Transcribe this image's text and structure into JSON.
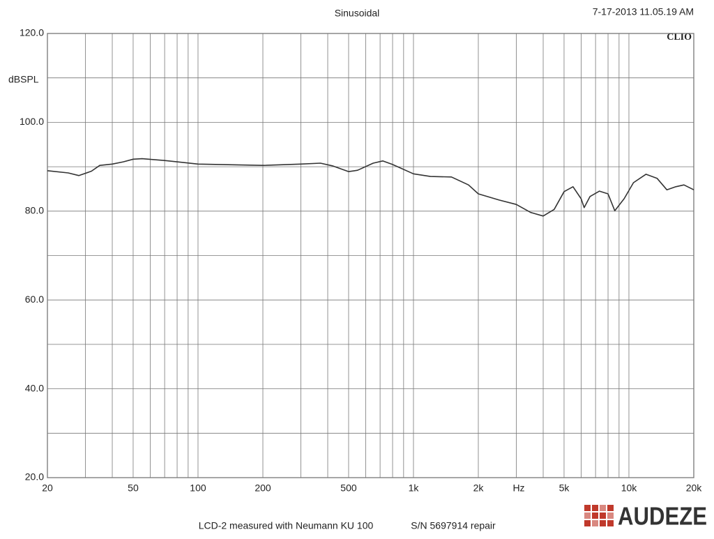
{
  "chart_data": {
    "type": "line",
    "title": "Sinusoidal",
    "timestamp": "7-17-2013 11.05.19 AM",
    "brand": "CLIO",
    "y_label": "dBSPL",
    "x_label": "Hz",
    "caption": "LCD-2 measured with Neumann KU 100",
    "serial": "S/N  5697914 repair",
    "logo": "AUDEZE",
    "xscale": "log",
    "grid": true,
    "xlim": [
      20,
      20000
    ],
    "ylim": [
      20,
      120
    ],
    "xticks": [
      20,
      50,
      100,
      200,
      500,
      {
        "value": 1000,
        "label": "1k"
      },
      {
        "value": 2000,
        "label": "2k"
      },
      {
        "value": 5000,
        "label": "5k"
      },
      {
        "value": 10000,
        "label": "10k"
      },
      {
        "value": 20000,
        "label": "20k"
      }
    ],
    "minor_xticks": [
      30,
      40,
      60,
      70,
      80,
      90,
      300,
      400,
      600,
      700,
      800,
      900,
      3000,
      4000,
      6000,
      7000,
      8000,
      9000
    ],
    "yticks": [
      {
        "value": 20,
        "label": "20.0"
      },
      {
        "value": 40,
        "label": "40.0"
      },
      {
        "value": 60,
        "label": "60.0"
      },
      {
        "value": 80,
        "label": "80.0"
      },
      {
        "value": 100,
        "label": "100.0"
      },
      {
        "value": 120,
        "label": "120.0"
      }
    ],
    "minor_yticks": [
      30,
      50,
      70,
      90,
      110
    ],
    "series": [
      {
        "color": "#333333",
        "x": [
          20,
          25,
          28,
          32,
          35,
          40,
          45,
          50,
          55,
          70,
          100,
          200,
          300,
          370,
          420,
          500,
          550,
          650,
          720,
          800,
          1000,
          1200,
          1500,
          1800,
          2000,
          2500,
          3000,
          3500,
          4000,
          4500,
          5000,
          5500,
          6000,
          6200,
          6600,
          7300,
          8000,
          8600,
          9500,
          10500,
          12000,
          13500,
          15000,
          16500,
          18000,
          20000
        ],
        "values": [
          89.1,
          88.6,
          88.0,
          89.0,
          90.3,
          90.6,
          91.1,
          91.7,
          91.8,
          91.4,
          90.6,
          90.3,
          90.6,
          90.8,
          90.2,
          88.9,
          89.2,
          90.8,
          91.3,
          90.5,
          88.4,
          87.8,
          87.7,
          85.9,
          83.9,
          82.5,
          81.5,
          79.7,
          78.9,
          80.4,
          84.4,
          85.5,
          82.8,
          80.8,
          83.3,
          84.5,
          83.9,
          80.1,
          82.8,
          86.4,
          88.3,
          87.4,
          84.8,
          85.5,
          85.9,
          84.8
        ]
      }
    ]
  }
}
